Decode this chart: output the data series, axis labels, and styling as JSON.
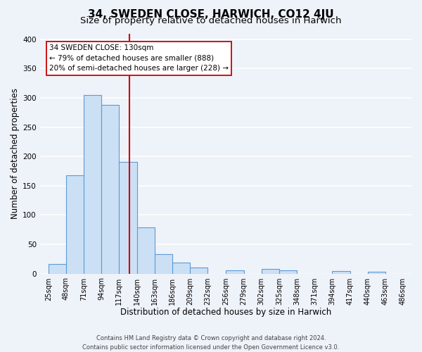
{
  "title": "34, SWEDEN CLOSE, HARWICH, CO12 4JU",
  "subtitle": "Size of property relative to detached houses in Harwich",
  "xlabel": "Distribution of detached houses by size in Harwich",
  "ylabel": "Number of detached properties",
  "bar_lefts": [
    25,
    48,
    71,
    94,
    117,
    140,
    163,
    186,
    209,
    232,
    256,
    279,
    302,
    325,
    348,
    371,
    394,
    417,
    440,
    463
  ],
  "bar_rights": [
    48,
    71,
    94,
    117,
    140,
    163,
    186,
    209,
    232,
    256,
    279,
    302,
    325,
    348,
    371,
    394,
    417,
    440,
    463,
    486
  ],
  "bar_heights": [
    16,
    168,
    305,
    288,
    191,
    79,
    33,
    19,
    10,
    0,
    5,
    0,
    8,
    5,
    0,
    0,
    4,
    0,
    3,
    0
  ],
  "bar_color": "#cce0f5",
  "bar_edge_color": "#5b9bd5",
  "vline_x": 130,
  "vline_color": "#cc0000",
  "annotation_title": "34 SWEDEN CLOSE: 130sqm",
  "annotation_line1": "← 79% of detached houses are smaller (888)",
  "annotation_line2": "20% of semi-detached houses are larger (228) →",
  "annotation_box_color": "#ffffff",
  "annotation_box_edge": "#cc0000",
  "ylim": [
    0,
    410
  ],
  "xlim": [
    14,
    497
  ],
  "tick_labels": [
    "25sqm",
    "48sqm",
    "71sqm",
    "94sqm",
    "117sqm",
    "140sqm",
    "163sqm",
    "186sqm",
    "209sqm",
    "232sqm",
    "256sqm",
    "279sqm",
    "302sqm",
    "325sqm",
    "348sqm",
    "371sqm",
    "394sqm",
    "417sqm",
    "440sqm",
    "463sqm",
    "486sqm"
  ],
  "tick_positions": [
    25,
    48,
    71,
    94,
    117,
    140,
    163,
    186,
    209,
    232,
    256,
    279,
    302,
    325,
    348,
    371,
    394,
    417,
    440,
    463,
    486
  ],
  "ytick_vals": [
    0,
    50,
    100,
    150,
    200,
    250,
    300,
    350,
    400
  ],
  "footer_line1": "Contains HM Land Registry data © Crown copyright and database right 2024.",
  "footer_line2": "Contains public sector information licensed under the Open Government Licence v3.0.",
  "background_color": "#eef2f9",
  "plot_bg_color": "#eef2f9",
  "grid_color": "#ffffff",
  "title_fontsize": 11,
  "subtitle_fontsize": 9.5,
  "axis_label_fontsize": 8.5,
  "tick_fontsize": 7,
  "footer_fontsize": 6,
  "annot_fontsize": 7.5
}
